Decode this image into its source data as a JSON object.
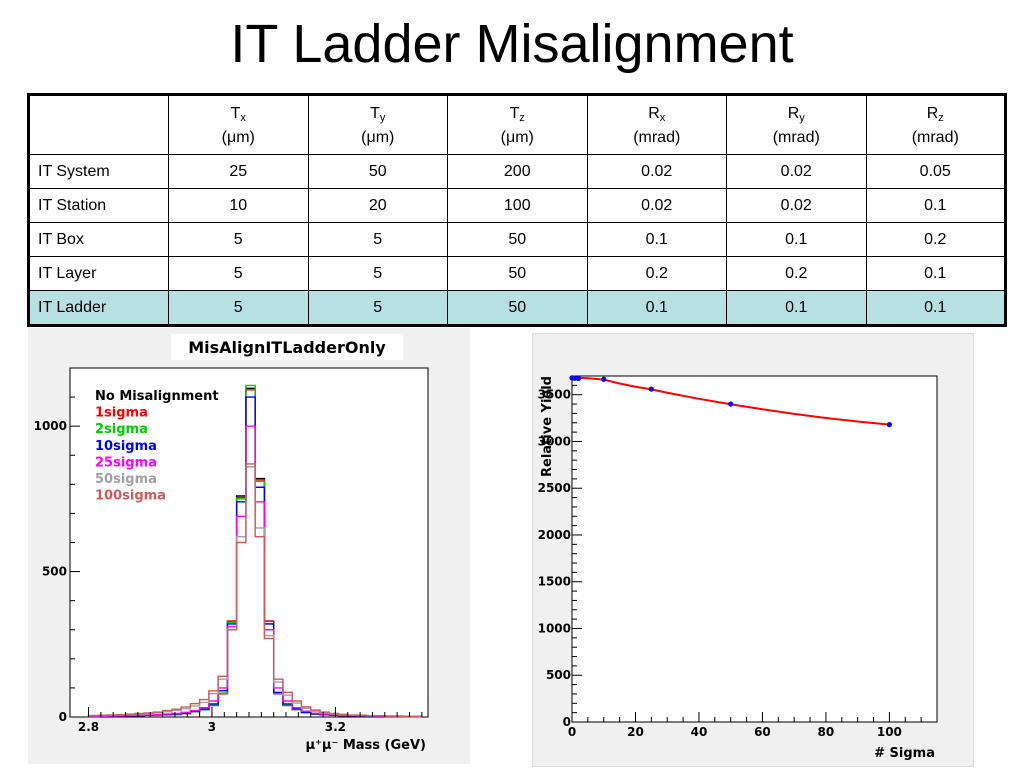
{
  "slide": {
    "title": "IT Ladder Misalignment"
  },
  "table": {
    "headers": [
      {
        "main": "",
        "sub": "",
        "unit": ""
      },
      {
        "main": "T",
        "sub": "x",
        "unit": "(μm)"
      },
      {
        "main": "T",
        "sub": "y",
        "unit": "(μm)"
      },
      {
        "main": "T",
        "sub": "z",
        "unit": "(μm)"
      },
      {
        "main": "R",
        "sub": "x",
        "unit": "(mrad)"
      },
      {
        "main": "R",
        "sub": "y",
        "unit": "(mrad)"
      },
      {
        "main": "R",
        "sub": "z",
        "unit": "(mrad)"
      }
    ],
    "rows": [
      {
        "label": "IT System",
        "values": [
          "25",
          "50",
          "200",
          "0.02",
          "0.02",
          "0.05"
        ]
      },
      {
        "label": "IT Station",
        "values": [
          "10",
          "20",
          "100",
          "0.02",
          "0.02",
          "0.1"
        ]
      },
      {
        "label": "IT Box",
        "values": [
          "5",
          "5",
          "50",
          "0.1",
          "0.1",
          "0.2"
        ]
      },
      {
        "label": "IT Layer",
        "values": [
          "5",
          "5",
          "50",
          "0.2",
          "0.2",
          "0.1"
        ]
      },
      {
        "label": "IT Ladder",
        "values": [
          "5",
          "5",
          "50",
          "0.1",
          "0.1",
          "0.1"
        ],
        "highlight": true
      }
    ],
    "highlight_color": "#b7e0e3"
  },
  "chart_data": [
    {
      "type": "line",
      "title": "MisAlignITLadderOnly",
      "xlabel": "μ⁺μ⁻ Mass (GeV)",
      "ylabel": "",
      "xlim": [
        2.77,
        3.35
      ],
      "ylim": [
        0,
        1200
      ],
      "x_ticks": [
        2.8,
        3,
        3.2
      ],
      "x_tick_labels": [
        "2.8",
        "3",
        "3.2"
      ],
      "y_ticks": [
        0,
        500,
        1000
      ],
      "y_tick_labels": [
        "0",
        "500",
        "1000"
      ],
      "histogram": true,
      "x": [
        2.8,
        2.815,
        2.83,
        2.845,
        2.86,
        2.875,
        2.89,
        2.905,
        2.92,
        2.935,
        2.95,
        2.965,
        2.98,
        2.995,
        3.01,
        3.025,
        3.04,
        3.055,
        3.07,
        3.085,
        3.1,
        3.115,
        3.13,
        3.145,
        3.16,
        3.175,
        3.19,
        3.205,
        3.22,
        3.235,
        3.25,
        3.265,
        3.28,
        3.295,
        3.31,
        3.325
      ],
      "legend_title": "No Misalignment",
      "series": [
        {
          "name": "No Misalignment",
          "color": "#000000",
          "values": [
            2,
            3,
            3,
            4,
            4,
            5,
            6,
            7,
            8,
            9,
            12,
            18,
            25,
            40,
            80,
            330,
            760,
            1130,
            820,
            330,
            80,
            40,
            25,
            15,
            10,
            8,
            6,
            5,
            4,
            4,
            3,
            3,
            2,
            2,
            2,
            2
          ]
        },
        {
          "name": "1sigma",
          "color": "#ff0000",
          "values": [
            2,
            3,
            3,
            4,
            4,
            5,
            6,
            7,
            8,
            9,
            12,
            18,
            25,
            40,
            80,
            330,
            755,
            1125,
            815,
            330,
            80,
            40,
            25,
            15,
            10,
            8,
            6,
            5,
            4,
            4,
            3,
            3,
            2,
            2,
            2,
            2
          ]
        },
        {
          "name": "2sigma",
          "color": "#00cc00",
          "values": [
            2,
            3,
            3,
            4,
            4,
            5,
            6,
            7,
            8,
            9,
            12,
            18,
            25,
            42,
            82,
            325,
            750,
            1140,
            810,
            320,
            82,
            42,
            25,
            15,
            10,
            8,
            6,
            5,
            4,
            4,
            3,
            3,
            2,
            2,
            2,
            2
          ]
        },
        {
          "name": "10sigma",
          "color": "#0000ff",
          "values": [
            2,
            3,
            3,
            4,
            4,
            5,
            6,
            7,
            8,
            10,
            13,
            19,
            27,
            45,
            90,
            320,
            740,
            1100,
            790,
            320,
            85,
            45,
            28,
            16,
            11,
            8,
            6,
            5,
            4,
            4,
            3,
            3,
            2,
            2,
            2,
            2
          ]
        },
        {
          "name": "25sigma",
          "color": "#ff00ff",
          "values": [
            3,
            3,
            4,
            4,
            5,
            6,
            7,
            8,
            10,
            12,
            16,
            22,
            32,
            55,
            100,
            310,
            690,
            1000,
            740,
            300,
            100,
            55,
            32,
            20,
            13,
            10,
            8,
            6,
            5,
            4,
            4,
            3,
            3,
            2,
            2,
            2
          ]
        },
        {
          "name": "50sigma",
          "color": "#a0a0a0",
          "values": [
            4,
            5,
            6,
            7,
            8,
            10,
            12,
            14,
            18,
            22,
            28,
            38,
            50,
            80,
            130,
            300,
            620,
            860,
            650,
            280,
            120,
            75,
            48,
            30,
            20,
            14,
            10,
            8,
            6,
            5,
            4,
            4,
            3,
            3,
            2,
            2
          ]
        },
        {
          "name": "100sigma",
          "color": "#d05a5a",
          "values": [
            5,
            6,
            7,
            8,
            10,
            12,
            14,
            17,
            22,
            27,
            34,
            46,
            60,
            90,
            140,
            300,
            600,
            870,
            620,
            270,
            130,
            85,
            55,
            35,
            24,
            17,
            12,
            9,
            7,
            6,
            5,
            4,
            3,
            3,
            2,
            2
          ]
        }
      ],
      "grid": false,
      "legend_position": "top-left"
    },
    {
      "type": "line",
      "title": "",
      "xlabel": "# Sigma",
      "ylabel": "Relative Yield",
      "xlim": [
        0,
        115
      ],
      "ylim": [
        0,
        3700
      ],
      "x_ticks": [
        0,
        20,
        40,
        60,
        80,
        100
      ],
      "x_tick_labels": [
        "0",
        "20",
        "40",
        "60",
        "80",
        "100"
      ],
      "y_ticks": [
        0,
        500,
        1000,
        1500,
        2000,
        2500,
        3000,
        3500
      ],
      "y_tick_labels": [
        "0",
        "500",
        "1000",
        "1500",
        "2000",
        "2500",
        "3000",
        "3500"
      ],
      "series": [
        {
          "name": "",
          "color": "#0000ff",
          "marker": "dot",
          "x": [
            0,
            0.5,
            1,
            2,
            10,
            25,
            50,
            100
          ],
          "values": [
            3680,
            3678,
            3677,
            3673,
            3665,
            3560,
            3400,
            3180
          ]
        },
        {
          "name": "",
          "color": "#ff0000",
          "marker": "none",
          "x": [
            0,
            5,
            10,
            15,
            20,
            25,
            30,
            40,
            50,
            60,
            70,
            80,
            90,
            100
          ],
          "values": [
            3683,
            3676,
            3662,
            3620,
            3585,
            3557,
            3521,
            3456,
            3398,
            3344,
            3295,
            3251,
            3214,
            3180
          ]
        }
      ],
      "grid": false
    }
  ]
}
